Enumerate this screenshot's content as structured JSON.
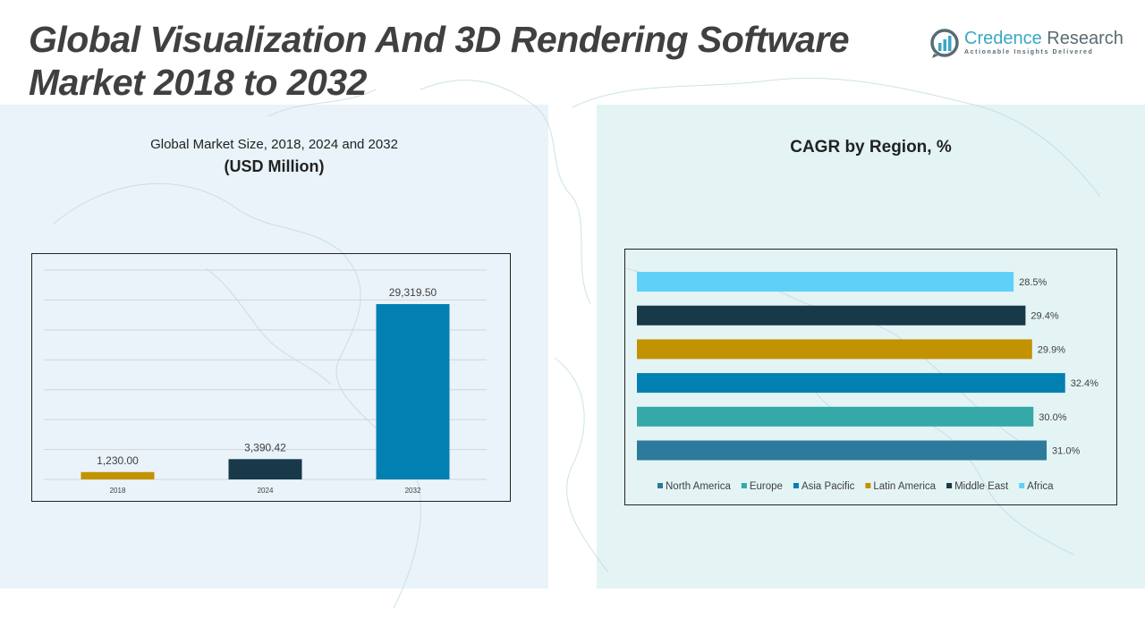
{
  "header": {
    "title_line1": "Global Visualization And 3D Rendering Software",
    "title_line2": "Market 2018 to 2032"
  },
  "logo": {
    "name_part1": "Credence",
    "name_part2": "Research",
    "tagline": "Actionable Insights Delivered"
  },
  "colors": {
    "gold": "#c39200",
    "dark_navy": "#17394a",
    "blue": "#0380b2",
    "steel_blue": "#2e7a9c",
    "teal": "#35a8a8",
    "light_blue": "#5fd0f8"
  },
  "chart_data": [
    {
      "type": "bar",
      "title": "Global Market Size, 2018, 2024 and 2032",
      "subtitle": "(USD Million)",
      "categories": [
        "2018",
        "2024",
        "2032"
      ],
      "values": [
        1230.0,
        3390.42,
        29319.5
      ],
      "value_labels": [
        "1,230.00",
        "3,390.42",
        "29,319.50"
      ],
      "colors": [
        "#c39200",
        "#17394a",
        "#0380b2"
      ],
      "xlabel": "",
      "ylabel": "",
      "ylim": [
        0,
        35000
      ],
      "grid": true,
      "legend": "none"
    },
    {
      "type": "bar",
      "orientation": "horizontal",
      "title": "CAGR by Region, %",
      "categories": [
        "Africa",
        "Middle East",
        "Latin America",
        "Asia Pacific",
        "Europe",
        "North America"
      ],
      "values": [
        28.5,
        29.4,
        29.9,
        32.4,
        30.0,
        31.0
      ],
      "value_labels": [
        "28.5%",
        "29.4%",
        "29.9%",
        "32.4%",
        "30.0%",
        "31.0%"
      ],
      "colors": [
        "#5fd0f8",
        "#17394a",
        "#c39200",
        "#0380b2",
        "#35a8a8",
        "#2e7a9c"
      ],
      "xlim": [
        0,
        33.5
      ],
      "grid": false,
      "legend_position": "bottom",
      "legend": [
        {
          "label": "North America",
          "color": "#2e7a9c"
        },
        {
          "label": "Europe",
          "color": "#35a8a8"
        },
        {
          "label": "Asia Pacific",
          "color": "#0380b2"
        },
        {
          "label": "Latin America",
          "color": "#c39200"
        },
        {
          "label": "Middle East",
          "color": "#17394a"
        },
        {
          "label": "Africa",
          "color": "#5fd0f8"
        }
      ]
    }
  ]
}
